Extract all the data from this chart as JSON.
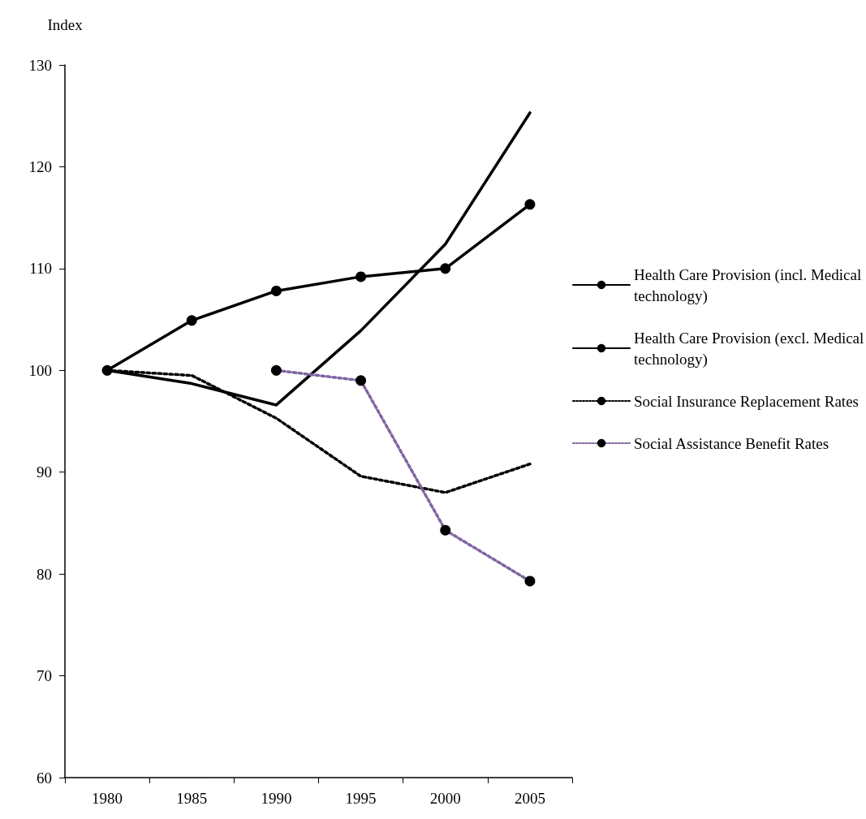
{
  "chart_data": {
    "type": "line",
    "ylabel": "Index",
    "categories": [
      "1980",
      "1985",
      "1990",
      "1995",
      "2000",
      "2005"
    ],
    "series": [
      {
        "name": "Health Care Provision (incl. Medical technology)",
        "color": "#000000",
        "marker": "none",
        "line_style": "solid",
        "values": [
          100,
          98.7,
          96.6,
          103.9,
          112.4,
          125.3
        ]
      },
      {
        "name": "Health Care Provision (excl. Medical technology)",
        "color": "#000000",
        "marker": "circle",
        "line_style": "solid",
        "values": [
          100,
          104.9,
          107.8,
          109.2,
          110.0,
          116.3
        ]
      },
      {
        "name": "Social Insurance Replacement Rates",
        "color": "#000000",
        "marker": "none",
        "line_style": "dotted",
        "values": [
          100,
          99.5,
          95.3,
          89.6,
          88.0,
          90.8
        ]
      },
      {
        "name": "Social Assistance Benefit Rates",
        "color": "#8064a2",
        "marker": "circle",
        "line_style": "dotted",
        "values": [
          null,
          null,
          100,
          99.0,
          84.3,
          79.3
        ]
      }
    ],
    "ylim": [
      60,
      130
    ],
    "yticks": [
      60,
      70,
      80,
      90,
      100,
      110,
      120,
      130
    ],
    "grid": false,
    "legend": "right"
  }
}
